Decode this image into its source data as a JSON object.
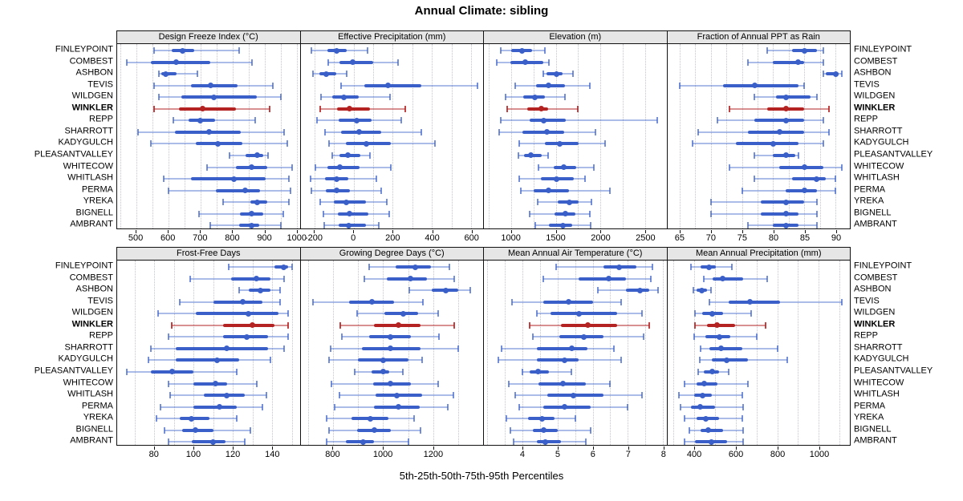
{
  "title": "Annual Climate: sibling",
  "caption": "5th-25th-50th-75th-95th Percentiles",
  "highlight_station": "WINKLER",
  "colors": {
    "series": "#3A5FC8",
    "series_whisker": "rgba(58,95,200,0.42)",
    "series_cap": "rgba(58,95,200,0.70)",
    "highlight": "#B42222",
    "highlight_whisker": "rgba(180,34,34,0.50)",
    "highlight_cap": "rgba(180,34,34,0.85)",
    "strip_bg": "#E6E6E6",
    "grid": "#C3C3CE",
    "border": "#111111"
  },
  "chart_data": {
    "type": "dotplot-percentile-trellis",
    "title": "Annual Climate: sibling",
    "xlabel": "5th-25th-50th-75th-95th Percentiles",
    "layout": {
      "rows": 2,
      "cols": 4,
      "grid": "dotted-vertical",
      "legend": "none"
    },
    "percentile_labels": [
      "5th",
      "25th",
      "50th",
      "75th",
      "95th"
    ],
    "stations": [
      "FINLEYPOINT",
      "COMBEST",
      "ASHBON",
      "TEVIS",
      "WILDGEN",
      "WINKLER",
      "REPP",
      "SHARROTT",
      "KADYGULCH",
      "PLEASANTVALLEY",
      "WHITECOW",
      "WHITLASH",
      "PERMA",
      "YREKA",
      "BIGNELL",
      "AMBRANT"
    ],
    "panels": [
      {
        "title": "Design Freeze Index (°C)",
        "xlim": [
          440,
          1010
        ],
        "ticks": [
          500,
          600,
          700,
          800,
          900,
          1000
        ],
        "values": [
          [
            555,
            610,
            645,
            680,
            820
          ],
          [
            470,
            545,
            625,
            730,
            860
          ],
          [
            570,
            578,
            592,
            625,
            690
          ],
          [
            555,
            670,
            733,
            815,
            925
          ],
          [
            570,
            640,
            743,
            875,
            950
          ],
          [
            555,
            633,
            708,
            810,
            915
          ],
          [
            615,
            663,
            700,
            745,
            870
          ],
          [
            505,
            620,
            726,
            827,
            960
          ],
          [
            545,
            685,
            754,
            832,
            970
          ],
          [
            790,
            840,
            876,
            895,
            912
          ],
          [
            720,
            810,
            860,
            908,
            985
          ],
          [
            585,
            670,
            805,
            903,
            975
          ],
          [
            600,
            747,
            840,
            887,
            980
          ],
          [
            770,
            857,
            878,
            908,
            975
          ],
          [
            695,
            823,
            860,
            895,
            958
          ],
          [
            730,
            822,
            860,
            884,
            950
          ]
        ]
      },
      {
        "title": "Effective Precipitation (mm)",
        "xlim": [
          -270,
          660
        ],
        "ticks": [
          -200,
          0,
          200,
          400,
          600
        ],
        "values": [
          [
            -215,
            -135,
            -85,
            -35,
            70
          ],
          [
            -130,
            -70,
            -5,
            100,
            225
          ],
          [
            -205,
            -175,
            -140,
            -90,
            -35
          ],
          [
            -65,
            55,
            175,
            345,
            630
          ],
          [
            -165,
            -110,
            -50,
            25,
            185
          ],
          [
            -170,
            -85,
            -20,
            85,
            265
          ],
          [
            -185,
            -75,
            15,
            90,
            245
          ],
          [
            -145,
            -65,
            30,
            140,
            345
          ],
          [
            -125,
            -40,
            65,
            190,
            415
          ],
          [
            -110,
            -70,
            -30,
            35,
            85
          ],
          [
            -195,
            -135,
            -70,
            30,
            190
          ],
          [
            -220,
            -145,
            -85,
            -25,
            115
          ],
          [
            -215,
            -140,
            -85,
            -20,
            140
          ],
          [
            -170,
            -100,
            -35,
            65,
            170
          ],
          [
            -155,
            -80,
            -20,
            75,
            180
          ],
          [
            -150,
            -75,
            -25,
            65,
            130
          ]
        ]
      },
      {
        "title": "Elevation (m)",
        "xlim": [
          695,
          2740
        ],
        "ticks": [
          1000,
          1500,
          2000,
          2500
        ],
        "values": [
          [
            885,
            1000,
            1120,
            1230,
            1375
          ],
          [
            835,
            990,
            1155,
            1360,
            1425
          ],
          [
            1360,
            1395,
            1505,
            1575,
            1690
          ],
          [
            1045,
            1275,
            1415,
            1600,
            1880
          ],
          [
            940,
            1135,
            1265,
            1380,
            1600
          ],
          [
            960,
            1180,
            1340,
            1410,
            1750
          ],
          [
            885,
            1210,
            1365,
            1610,
            2640
          ],
          [
            870,
            1125,
            1405,
            1595,
            1945
          ],
          [
            1095,
            1375,
            1545,
            1760,
            2050
          ],
          [
            1080,
            1140,
            1220,
            1340,
            1410
          ],
          [
            1305,
            1480,
            1590,
            1730,
            1930
          ],
          [
            1095,
            1330,
            1510,
            1700,
            1825
          ],
          [
            1110,
            1250,
            1415,
            1650,
            2105
          ],
          [
            1295,
            1520,
            1650,
            1760,
            1900
          ],
          [
            1210,
            1490,
            1610,
            1720,
            1885
          ],
          [
            1270,
            1425,
            1580,
            1685,
            1895
          ]
        ]
      },
      {
        "title": "Fraction of Annual PPT as Rain",
        "xlim": [
          63,
          92.3
        ],
        "ticks": [
          65,
          70,
          75,
          80,
          85,
          90
        ],
        "values": [
          [
            79,
            83,
            85,
            87,
            88
          ],
          [
            76,
            80,
            84,
            85,
            88
          ],
          [
            88,
            88.5,
            90,
            90.5,
            91
          ],
          [
            65,
            72,
            77,
            84,
            85
          ],
          [
            77,
            80.5,
            82,
            86,
            87
          ],
          [
            73,
            79,
            82,
            85,
            89
          ],
          [
            71,
            77,
            82,
            85,
            88
          ],
          [
            68,
            76,
            81,
            85,
            89
          ],
          [
            67,
            74,
            80,
            84,
            88
          ],
          [
            77,
            80,
            82,
            83.5,
            84
          ],
          [
            73,
            81,
            85,
            88,
            91
          ],
          [
            77,
            83,
            87,
            88.5,
            90
          ],
          [
            75,
            82,
            85,
            87,
            90
          ],
          [
            70,
            78,
            82,
            85,
            87
          ],
          [
            70,
            78,
            82,
            84,
            87
          ],
          [
            76,
            80,
            82,
            84,
            87
          ]
        ]
      },
      {
        "title": "Frost-Free Days",
        "xlim": [
          61,
          154
        ],
        "ticks": [
          80,
          100,
          120,
          140
        ],
        "values": [
          [
            118,
            141,
            146,
            148,
            150
          ],
          [
            98,
            119,
            132,
            139,
            146
          ],
          [
            123,
            128,
            134,
            139,
            144
          ],
          [
            93,
            110,
            125,
            135,
            144
          ],
          [
            82,
            101,
            128,
            143,
            148
          ],
          [
            89,
            115,
            130,
            141,
            148
          ],
          [
            87,
            115,
            127,
            138,
            148
          ],
          [
            78,
            91,
            117,
            138,
            146
          ],
          [
            77,
            91,
            112,
            123,
            139
          ],
          [
            66,
            78,
            89,
            100,
            122
          ],
          [
            87,
            100,
            111,
            117,
            132
          ],
          [
            88,
            105,
            117,
            126,
            137
          ],
          [
            83,
            100,
            113,
            122,
            135
          ],
          [
            81,
            93,
            99,
            108,
            122
          ],
          [
            85,
            94,
            101,
            110,
            129
          ],
          [
            87,
            99,
            110,
            116,
            126
          ]
        ]
      },
      {
        "title": "Growing Degree Days (°C)",
        "xlim": [
          670,
          1400
        ],
        "ticks": [
          800,
          1000,
          1200
        ],
        "values": [
          [
            945,
            1050,
            1130,
            1190,
            1265
          ],
          [
            925,
            1015,
            1110,
            1175,
            1285
          ],
          [
            1105,
            1195,
            1250,
            1300,
            1350
          ],
          [
            720,
            865,
            955,
            1045,
            1160
          ],
          [
            895,
            1005,
            1080,
            1140,
            1220
          ],
          [
            830,
            965,
            1060,
            1150,
            1285
          ],
          [
            835,
            945,
            1030,
            1110,
            1225
          ],
          [
            790,
            915,
            1030,
            1150,
            1300
          ],
          [
            785,
            900,
            1000,
            1100,
            1155
          ],
          [
            885,
            955,
            1000,
            1025,
            1080
          ],
          [
            795,
            960,
            1030,
            1110,
            1220
          ],
          [
            825,
            970,
            1055,
            1155,
            1280
          ],
          [
            805,
            965,
            1060,
            1145,
            1260
          ],
          [
            775,
            875,
            950,
            1020,
            1125
          ],
          [
            785,
            895,
            965,
            1030,
            1150
          ],
          [
            775,
            850,
            920,
            965,
            1100
          ]
        ]
      },
      {
        "title": "Mean Annual Air Temperature (°C)",
        "xlim": [
          2.9,
          8.1
        ],
        "ticks": [
          4,
          5,
          6,
          7,
          8
        ],
        "values": [
          [
            4.95,
            6.3,
            6.75,
            7.25,
            7.7
          ],
          [
            4.6,
            5.6,
            6.45,
            6.95,
            7.65
          ],
          [
            6.15,
            6.95,
            7.35,
            7.6,
            7.85
          ],
          [
            3.7,
            4.6,
            5.3,
            6.0,
            6.8
          ],
          [
            4.4,
            4.8,
            5.6,
            6.7,
            7.4
          ],
          [
            4.2,
            5.1,
            5.85,
            6.7,
            7.6
          ],
          [
            4.3,
            5.05,
            5.75,
            6.3,
            7.45
          ],
          [
            3.4,
            4.4,
            5.4,
            5.85,
            6.6
          ],
          [
            3.3,
            4.4,
            5.2,
            5.6,
            6.8
          ],
          [
            4.0,
            4.2,
            4.45,
            4.75,
            5.4
          ],
          [
            3.6,
            4.45,
            5.15,
            5.8,
            6.5
          ],
          [
            3.8,
            4.7,
            5.45,
            6.3,
            7.4
          ],
          [
            3.9,
            4.6,
            5.2,
            5.95,
            7.0
          ],
          [
            3.55,
            4.15,
            4.55,
            4.9,
            5.5
          ],
          [
            3.65,
            4.3,
            4.6,
            5.0,
            5.95
          ],
          [
            3.75,
            4.4,
            4.65,
            5.1,
            5.8
          ]
        ]
      },
      {
        "title": "Mean Annual Precipitation (mm)",
        "xlim": [
          270,
          1150
        ],
        "ticks": [
          400,
          600,
          800,
          1000
        ],
        "values": [
          [
            385,
            430,
            470,
            505,
            580
          ],
          [
            445,
            490,
            535,
            635,
            750
          ],
          [
            395,
            410,
            435,
            460,
            480
          ],
          [
            475,
            565,
            670,
            815,
            1110
          ],
          [
            405,
            440,
            487,
            540,
            675
          ],
          [
            405,
            460,
            510,
            595,
            745
          ],
          [
            400,
            455,
            520,
            575,
            700
          ],
          [
            430,
            475,
            530,
            630,
            800
          ],
          [
            425,
            485,
            555,
            660,
            850
          ],
          [
            420,
            445,
            487,
            520,
            565
          ],
          [
            355,
            410,
            447,
            510,
            660
          ],
          [
            325,
            400,
            442,
            485,
            630
          ],
          [
            335,
            385,
            430,
            500,
            635
          ],
          [
            355,
            410,
            455,
            520,
            630
          ],
          [
            378,
            430,
            467,
            540,
            635
          ],
          [
            355,
            405,
            483,
            560,
            635
          ]
        ]
      }
    ]
  }
}
